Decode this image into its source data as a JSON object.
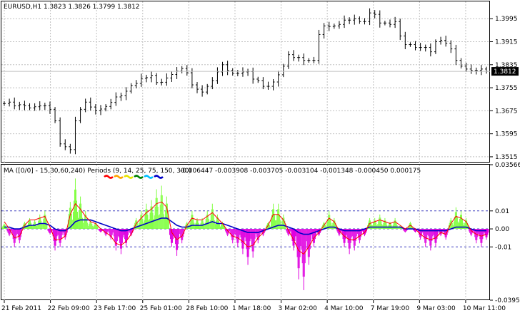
{
  "chart_data": [
    {
      "type": "line",
      "style": "ohlc-bars",
      "title": "EURUSD,H1  1.3823  1.3826  1.3799  1.3812",
      "ylim": [
        1.3495,
        1.4055
      ],
      "y_ticks": [
        "1.3995",
        "1.3915",
        "1.3835",
        "1.3755",
        "1.3675",
        "1.3595",
        "1.3515"
      ],
      "y_tick_values": [
        1.3995,
        1.3915,
        1.3835,
        1.3755,
        1.3675,
        1.3595,
        1.3515
      ],
      "current_price": "1.3812",
      "current_price_value": 1.3812,
      "bar_color": "#000000",
      "grid": true,
      "grid_color": "#c0c0c0",
      "series": [
        {
          "values": [
            1.37,
            1.3705,
            1.3692,
            1.3696,
            1.3693,
            1.3685,
            1.3689,
            1.3692,
            1.3693,
            1.368,
            1.364,
            1.356,
            1.355,
            1.354,
            1.364,
            1.368,
            1.3705,
            1.3688,
            1.3676,
            1.3681,
            1.369,
            1.3704,
            1.3723,
            1.3728,
            1.3743,
            1.3763,
            1.377,
            1.3788,
            1.379,
            1.3798,
            1.3773,
            1.3774,
            1.3789,
            1.3801,
            1.3813,
            1.3822,
            1.3807,
            1.3765,
            1.375,
            1.374,
            1.376,
            1.378,
            1.381,
            1.3835,
            1.3815,
            1.3805,
            1.3805,
            1.381,
            1.3811,
            1.3785,
            1.378,
            1.376,
            1.376,
            1.3775,
            1.38,
            1.383,
            1.387,
            1.386,
            1.386,
            1.385,
            1.385,
            1.385,
            1.394,
            1.397,
            1.3968,
            1.397,
            1.3975,
            1.399,
            1.399,
            1.3995,
            1.3985,
            1.3985,
            1.4015,
            1.401,
            1.398,
            1.398,
            1.3975,
            1.3985,
            1.3935,
            1.3905,
            1.3905,
            1.3895,
            1.3895,
            1.3895,
            1.388,
            1.3915,
            1.392,
            1.391,
            1.389,
            1.385,
            1.383,
            1.382,
            1.3815,
            1.3815,
            1.382,
            1.3812
          ]
        }
      ]
    },
    {
      "type": "bar",
      "title": "MA ([0/0] - 15,30,60,240) Periods (9, 14, 25, 75, 150, 300)",
      "values_readout": "-0.006447 -0.003908 -0.003705 -0.003104 -0.001348 -0.000450 0.000175",
      "ylim": [
        -0.03958,
        0.03566
      ],
      "y_ticks": [
        "0.03566",
        "0.01",
        "0.00",
        "-0.01",
        "-0.03958"
      ],
      "y_tick_values": [
        0.03566,
        0.01,
        0.0,
        -0.01,
        -0.03958
      ],
      "levels": [
        0.01,
        0.0,
        -0.01
      ],
      "level_color": "#4040c0",
      "positive_color": "#80ff40",
      "negative_color": "#e000e0",
      "period_colors": [
        "#ff0000",
        "#ffa500",
        "#e6e600",
        "#008000",
        "#00bfff",
        "#0000c8"
      ],
      "histogram": [
        0.003,
        -0.004,
        -0.01,
        -0.008,
        0.004,
        0.006,
        0.005,
        0.008,
        0.01,
        -0.003,
        -0.012,
        -0.01,
        -0.006,
        0.015,
        0.028,
        0.018,
        0.01,
        0.005,
        0.004,
        -0.002,
        -0.004,
        -0.006,
        -0.012,
        -0.014,
        -0.01,
        -0.004,
        0.006,
        0.01,
        0.014,
        0.016,
        0.022,
        0.024,
        0.018,
        -0.01,
        -0.015,
        -0.008,
        0.004,
        0.01,
        0.006,
        0.006,
        0.01,
        0.014,
        0.008,
        0.004,
        -0.004,
        -0.008,
        -0.01,
        -0.014,
        -0.02,
        -0.016,
        -0.008,
        -0.004,
        0.004,
        0.014,
        0.014,
        0.008,
        -0.004,
        -0.012,
        -0.028,
        -0.034,
        -0.02,
        -0.01,
        -0.004,
        0.004,
        0.01,
        0.006,
        -0.004,
        -0.01,
        -0.014,
        -0.012,
        -0.008,
        -0.004,
        0.006,
        0.006,
        0.008,
        0.006,
        0.004,
        0.006,
        0.002,
        -0.002,
        0.004,
        -0.002,
        -0.006,
        -0.01,
        -0.012,
        -0.01,
        -0.004,
        -0.006,
        0.006,
        0.012,
        0.01,
        0.006,
        -0.004,
        -0.008,
        -0.01,
        -0.006
      ],
      "ma_fast": [
        0.004,
        0.0,
        -0.005,
        -0.004,
        0.002,
        0.005,
        0.005,
        0.006,
        0.007,
        0.001,
        -0.006,
        -0.006,
        -0.004,
        0.008,
        0.014,
        0.011,
        0.007,
        0.004,
        0.003,
        0.0,
        -0.002,
        -0.004,
        -0.008,
        -0.009,
        -0.007,
        -0.003,
        0.003,
        0.006,
        0.009,
        0.011,
        0.014,
        0.015,
        0.012,
        -0.002,
        -0.006,
        -0.004,
        0.002,
        0.006,
        0.005,
        0.005,
        0.007,
        0.009,
        0.006,
        0.003,
        -0.001,
        -0.004,
        -0.005,
        -0.007,
        -0.01,
        -0.009,
        -0.005,
        -0.002,
        0.002,
        0.008,
        0.008,
        0.005,
        -0.001,
        -0.006,
        -0.012,
        -0.014,
        -0.01,
        -0.005,
        -0.002,
        0.002,
        0.006,
        0.004,
        -0.001,
        -0.004,
        -0.006,
        -0.006,
        -0.004,
        -0.002,
        0.003,
        0.004,
        0.005,
        0.004,
        0.003,
        0.004,
        0.002,
        0.0,
        0.002,
        0.0,
        -0.003,
        -0.005,
        -0.006,
        -0.005,
        -0.002,
        -0.003,
        0.003,
        0.007,
        0.006,
        0.004,
        -0.001,
        -0.003,
        -0.004,
        -0.003
      ],
      "ma_slow": [
        0.001,
        0.001,
        0.0,
        0.0,
        0.001,
        0.002,
        0.002,
        0.003,
        0.003,
        0.002,
        0.0,
        -0.001,
        -0.001,
        0.001,
        0.004,
        0.005,
        0.005,
        0.005,
        0.004,
        0.003,
        0.002,
        0.001,
        0.0,
        -0.001,
        -0.001,
        0.0,
        0.001,
        0.002,
        0.003,
        0.004,
        0.005,
        0.006,
        0.006,
        0.004,
        0.002,
        0.001,
        0.001,
        0.002,
        0.002,
        0.002,
        0.003,
        0.004,
        0.003,
        0.003,
        0.002,
        0.001,
        0.0,
        -0.001,
        -0.002,
        -0.002,
        -0.002,
        -0.001,
        0.0,
        0.001,
        0.002,
        0.002,
        0.001,
        0.0,
        -0.002,
        -0.003,
        -0.003,
        -0.002,
        -0.001,
        0.0,
        0.001,
        0.001,
        0.0,
        -0.001,
        -0.001,
        -0.001,
        -0.001,
        0.0,
        0.001,
        0.001,
        0.001,
        0.001,
        0.001,
        0.001,
        0.001,
        0.0,
        0.0,
        0.0,
        -0.001,
        -0.001,
        -0.001,
        -0.001,
        -0.001,
        -0.001,
        0.0,
        0.001,
        0.001,
        0.001,
        0.0,
        -0.001,
        -0.001,
        -0.001
      ]
    }
  ],
  "x_axis": {
    "labels": [
      "21 Feb 2011",
      "22 Feb 09:00",
      "23 Feb 17:00",
      "25 Feb 01:00",
      "28 Feb 10:00",
      "1 Mar 18:00",
      "3 Mar 02:00",
      "4 Mar 10:00",
      "7 Mar 19:00",
      "9 Mar 03:00",
      "10 Mar 11:00"
    ]
  }
}
